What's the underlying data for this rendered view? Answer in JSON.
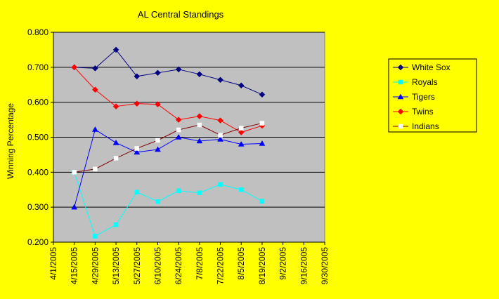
{
  "chart_data": {
    "type": "line",
    "title": "AL Central Standings",
    "xlabel": "",
    "ylabel": "Winning Percentage",
    "ylim": [
      0.2,
      0.8
    ],
    "yticks": [
      "0.200",
      "0.300",
      "0.400",
      "0.500",
      "0.600",
      "0.700",
      "0.800"
    ],
    "xticks": [
      "4/1/2005",
      "4/15/2005",
      "4/29/2005",
      "5/13/2005",
      "5/27/2005",
      "6/10/2005",
      "6/24/2005",
      "7/8/2005",
      "7/22/2005",
      "8/5/2005",
      "8/19/2005",
      "9/2/2005",
      "9/16/2005",
      "9/30/2005"
    ],
    "x": [
      "4/15/2005",
      "4/22/2005",
      "4/29/2005",
      "5/6/2005",
      "5/13/2005",
      "5/20/2005",
      "5/27/2005",
      "6/3/2005",
      "6/10/2005",
      "6/17/2005",
      "6/24/2005",
      "7/1/2005",
      "7/8/2005",
      "7/15/2005",
      "7/22/2005",
      "7/29/2005",
      "8/5/2005",
      "8/12/2005",
      "8/19/2005"
    ],
    "grid": true,
    "legend_position": "right",
    "plot_background": "#c0c0c0",
    "page_background": "#ffff00",
    "series": [
      {
        "name": "White Sox",
        "color": "#000080",
        "marker": "diamond",
        "line_color": "#000080",
        "values": [
          0.7,
          null,
          0.697,
          null,
          0.75,
          null,
          0.674,
          null,
          0.684,
          null,
          0.694,
          null,
          0.68,
          null,
          0.664,
          null,
          0.648,
          null,
          0.622
        ]
      },
      {
        "name": "Royals",
        "color": "#00ffff",
        "marker": "square",
        "line_color": "#00ffff",
        "values": [
          0.4,
          null,
          0.217,
          null,
          0.25,
          null,
          0.343,
          null,
          0.316,
          null,
          0.347,
          null,
          0.341,
          null,
          0.365,
          null,
          0.35,
          null,
          0.317
        ]
      },
      {
        "name": "Tigers",
        "color": "#0000ff",
        "marker": "triangle",
        "line_color": "#0000ff",
        "values": [
          0.3,
          null,
          0.522,
          null,
          0.484,
          null,
          0.457,
          null,
          0.465,
          null,
          0.5,
          null,
          0.489,
          null,
          0.494,
          null,
          0.48,
          null,
          0.482
        ]
      },
      {
        "name": "Twins",
        "color": "#ff0000",
        "marker": "diamond",
        "line_color": "#ff0000",
        "values": [
          0.7,
          null,
          0.636,
          null,
          0.588,
          null,
          0.596,
          null,
          0.594,
          null,
          0.55,
          null,
          0.56,
          null,
          0.548,
          null,
          0.514,
          null,
          0.533
        ]
      },
      {
        "name": "Indians",
        "color": "#ffffff",
        "marker": "square",
        "line_color": "#800000",
        "values": [
          0.4,
          null,
          0.409,
          null,
          0.44,
          null,
          0.468,
          null,
          0.491,
          null,
          0.521,
          null,
          0.535,
          null,
          0.506,
          null,
          0.526,
          null,
          0.54
        ]
      }
    ]
  }
}
